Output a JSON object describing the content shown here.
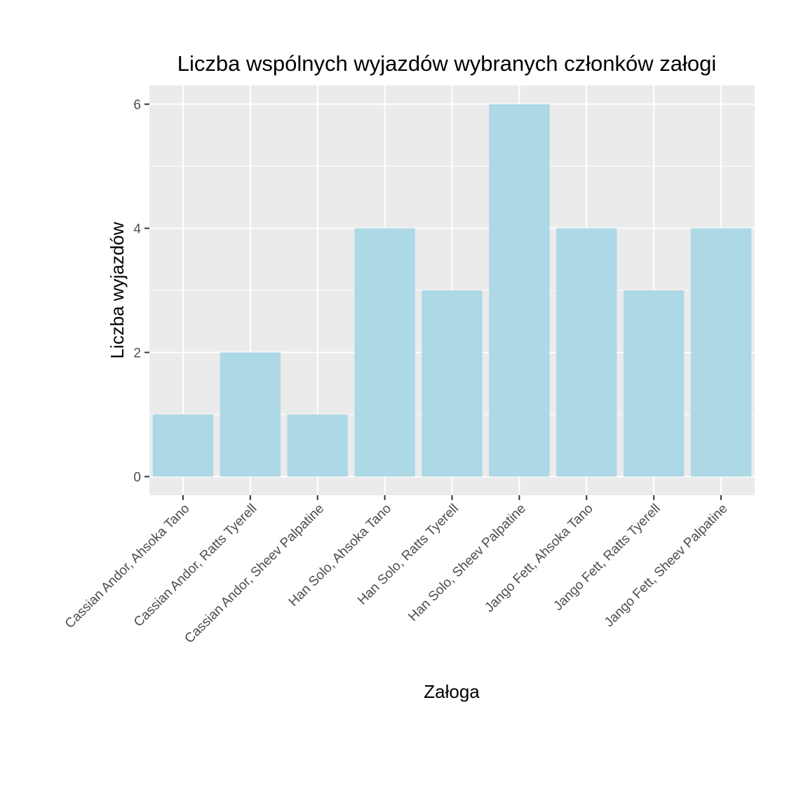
{
  "chart_data": {
    "type": "bar",
    "title": "Liczba wspólnych wyjazdów wybranych członków załogi",
    "xlabel": "Załoga",
    "ylabel": "Liczba wyjazdów",
    "categories": [
      "Cassian Andor, Ahsoka Tano",
      "Cassian Andor, Ratts Tyerell",
      "Cassian Andor, Sheev Palpatine",
      "Han Solo, Ahsoka Tano",
      "Han Solo, Ratts Tyerell",
      "Han Solo, Sheev Palpatine",
      "Jango Fett, Ahsoka Tano",
      "Jango Fett, Ratts Tyerell",
      "Jango Fett, Sheev Palpatine"
    ],
    "values": [
      1,
      2,
      1,
      4,
      3,
      6,
      4,
      3,
      4
    ],
    "ylim": [
      -0.3,
      6.3
    ],
    "yticks": [
      0,
      2,
      4,
      6
    ],
    "ytick_labels": [
      "0",
      "2",
      "4",
      "6"
    ],
    "grid": true,
    "colors": {
      "bar": "#add8e6",
      "panel": "#ebebeb",
      "grid": "#ffffff",
      "tick": "#333333"
    }
  }
}
